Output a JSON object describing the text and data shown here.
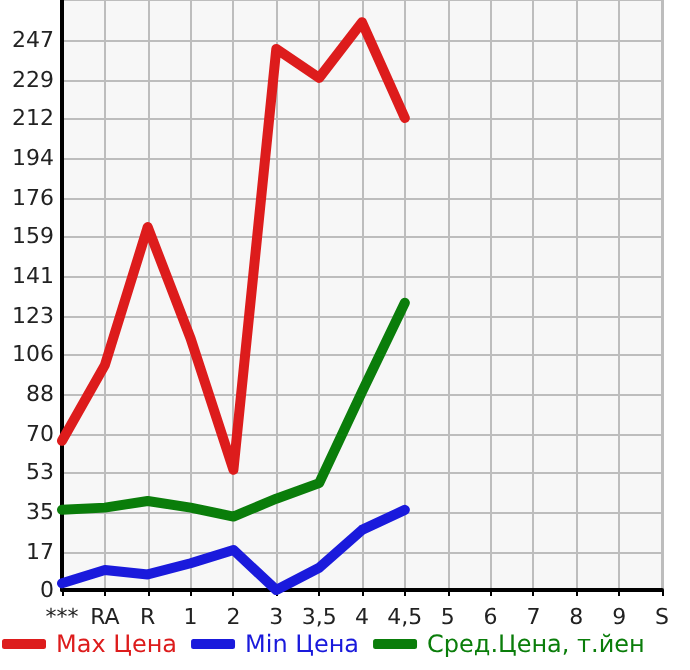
{
  "chart_data": {
    "type": "line",
    "categories": [
      "***",
      "RA",
      "R",
      "1",
      "2",
      "3",
      "3,5",
      "4",
      "4,5",
      "5",
      "6",
      "7",
      "8",
      "9",
      "S"
    ],
    "series": [
      {
        "name": "Max Цена",
        "color": "#dd1c1c",
        "values": [
          67,
          101,
          163,
          113,
          54,
          243,
          230,
          255,
          212,
          null,
          null,
          null,
          null,
          null,
          null
        ]
      },
      {
        "name": "Min Цена",
        "color": "#1a1adc",
        "values": [
          3,
          9,
          7,
          12,
          18,
          0,
          10,
          27,
          36,
          null,
          null,
          null,
          null,
          null,
          null
        ]
      },
      {
        "name": "Сред.Цена, т.йен",
        "color": "#0a7d0a",
        "values": [
          36,
          37,
          40,
          37,
          33,
          41,
          48,
          89,
          129,
          null,
          null,
          null,
          null,
          null,
          null
        ]
      }
    ],
    "ylim": [
      0,
      265
    ],
    "yticks": [
      0,
      17,
      35,
      53,
      70,
      88,
      106,
      123,
      141,
      159,
      176,
      194,
      212,
      229,
      247
    ],
    "grid": true,
    "legend": "bottom",
    "marker": "none",
    "line_style": "solid"
  }
}
